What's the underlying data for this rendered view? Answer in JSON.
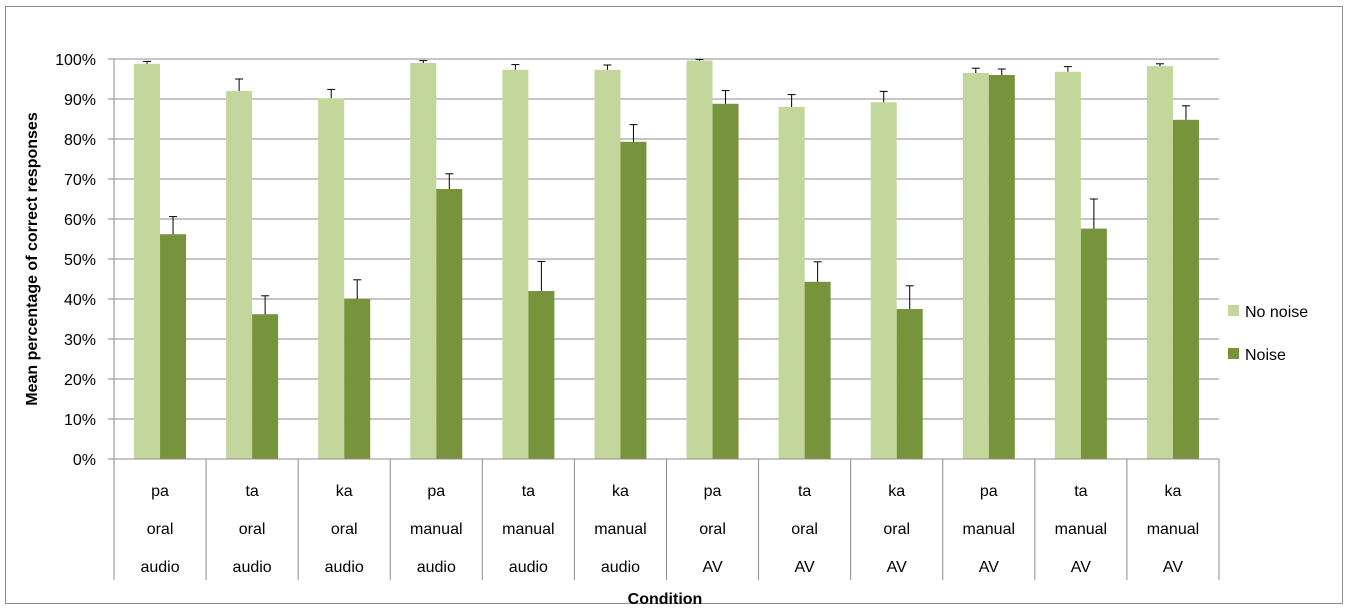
{
  "chart_data": {
    "type": "bar",
    "xlabel": "Condition",
    "ylabel": "Mean percentage of correct responses",
    "ylim": [
      0,
      100
    ],
    "yticks": [
      "0%",
      "10%",
      "20%",
      "30%",
      "40%",
      "50%",
      "60%",
      "70%",
      "80%",
      "90%",
      "100%"
    ],
    "grid": true,
    "legend_position": "right",
    "categories": [
      [
        "pa",
        "oral",
        "audio"
      ],
      [
        "ta",
        "oral",
        "audio"
      ],
      [
        "ka",
        "oral",
        "audio"
      ],
      [
        "pa",
        "manual",
        "audio"
      ],
      [
        "ta",
        "manual",
        "audio"
      ],
      [
        "ka",
        "manual",
        "audio"
      ],
      [
        "pa",
        "oral",
        "AV"
      ],
      [
        "ta",
        "oral",
        "AV"
      ],
      [
        "ka",
        "oral",
        "AV"
      ],
      [
        "pa",
        "manual",
        "AV"
      ],
      [
        "ta",
        "manual",
        "AV"
      ],
      [
        "ka",
        "manual",
        "AV"
      ]
    ],
    "series": [
      {
        "name": "No noise",
        "color": "#c3d69b",
        "values": [
          98.8,
          92.0,
          90.2,
          99.0,
          97.3,
          97.3,
          99.6,
          88.0,
          89.2,
          96.5,
          96.8,
          98.2
        ],
        "errors": [
          0.6,
          3.0,
          2.2,
          0.6,
          1.3,
          1.2,
          0.3,
          3.1,
          2.7,
          1.2,
          1.3,
          0.6
        ]
      },
      {
        "name": "Noise",
        "color": "#77933c",
        "values": [
          56.2,
          36.2,
          40.0,
          67.5,
          42.0,
          79.3,
          88.8,
          44.3,
          37.5,
          96.0,
          57.6,
          84.8
        ],
        "errors": [
          4.4,
          4.6,
          4.8,
          3.8,
          7.4,
          4.3,
          3.3,
          5.0,
          5.8,
          1.5,
          7.4,
          3.5
        ]
      }
    ]
  }
}
